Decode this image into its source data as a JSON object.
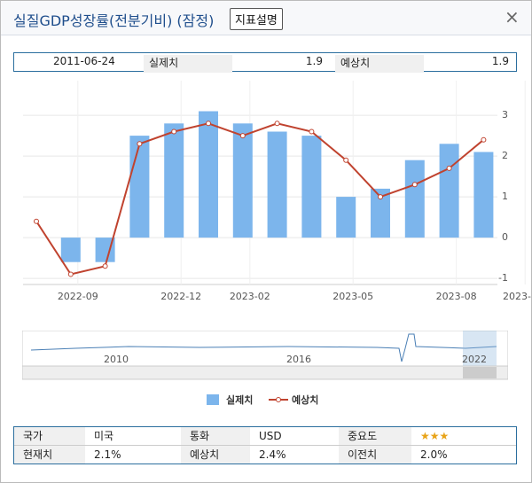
{
  "header": {
    "title": "실질GDP성장률(전분기비) (잠정)",
    "button": "지표설명",
    "close": "×"
  },
  "info": {
    "date": "2011-06-24",
    "actual_label": "실제치",
    "actual": "1.9",
    "forecast_label": "예상치",
    "forecast": "1.9"
  },
  "chart_data": {
    "type": "combo",
    "categories": [
      null,
      "2022-09",
      null,
      null,
      "2022-12",
      null,
      "2023-02",
      null,
      null,
      "2023-05",
      null,
      null,
      "2023-08",
      null,
      "2023-"
    ],
    "series": [
      {
        "name": "실제치",
        "type": "bar",
        "color": "#7cb5ec",
        "values": [
          null,
          -0.6,
          -0.6,
          2.5,
          2.8,
          3.1,
          2.8,
          2.6,
          2.5,
          1.0,
          1.2,
          1.9,
          2.3,
          2.1,
          null
        ]
      },
      {
        "name": "예상치",
        "type": "line",
        "color": "#c0432f",
        "values": [
          0.4,
          -0.9,
          -0.7,
          2.3,
          2.6,
          2.8,
          2.5,
          2.8,
          2.6,
          1.9,
          1.0,
          1.3,
          1.7,
          2.4,
          null
        ]
      }
    ],
    "ylim": [
      -1.15,
      3.85
    ],
    "yticks": [
      -1,
      0,
      1,
      2,
      3
    ],
    "grid": true
  },
  "navigator": {
    "labels": [
      "2010",
      "2016",
      "2022"
    ]
  },
  "table": {
    "rows": [
      [
        "국가",
        "미국",
        "통화",
        "USD",
        "중요도",
        "★★★"
      ],
      [
        "현재치",
        "2.1%",
        "예상치",
        "2.4%",
        "이전치",
        "2.0%"
      ]
    ]
  }
}
